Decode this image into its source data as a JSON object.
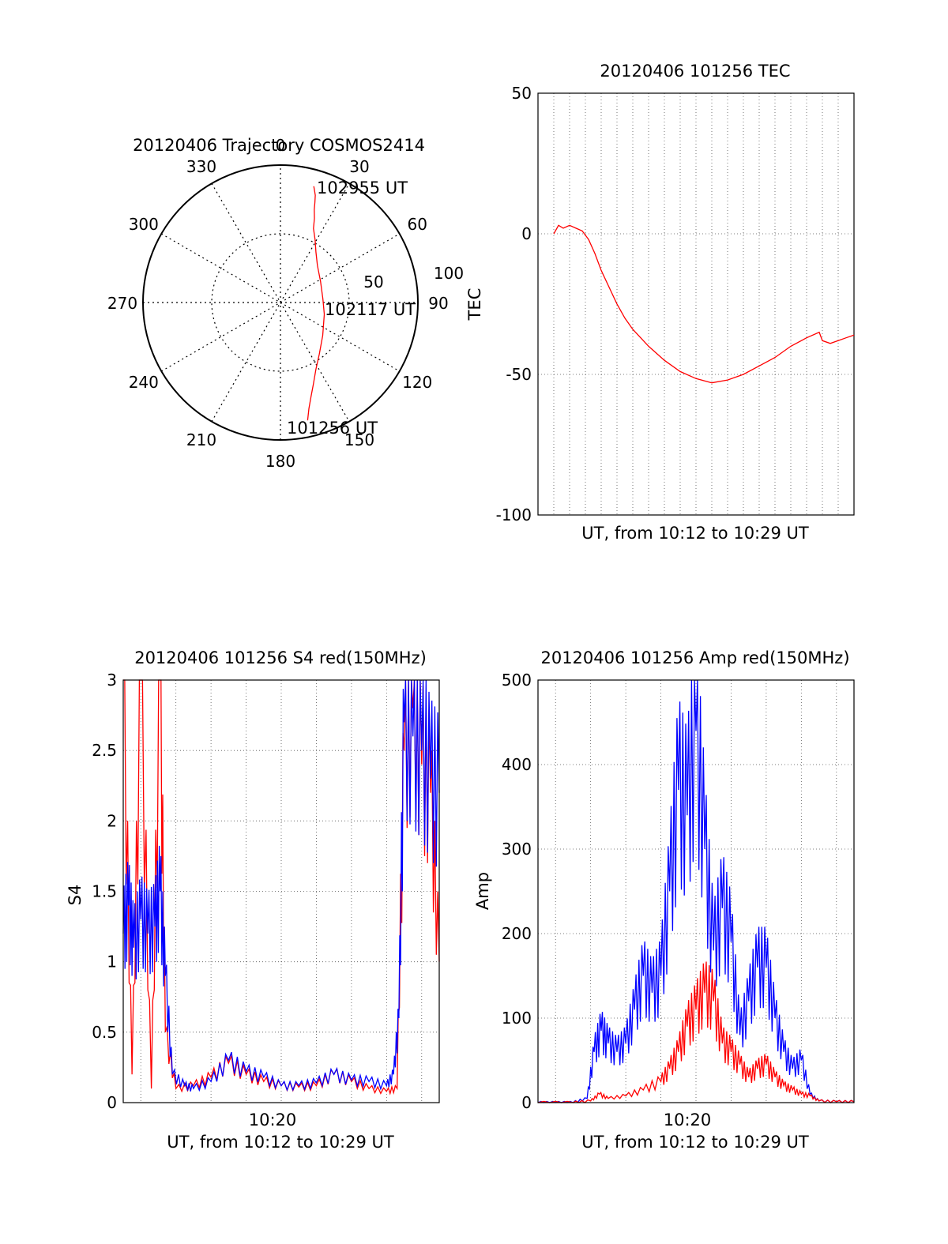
{
  "chart_data": [
    {
      "type": "polar",
      "title": "20120406 Trajectory COSMOS2414",
      "azimuth_labels": [
        "0",
        "30",
        "60",
        "90",
        "120",
        "150",
        "180",
        "210",
        "240",
        "270",
        "300",
        "330"
      ],
      "radial_labels": [
        "50",
        "100"
      ],
      "rlim": [
        0,
        100
      ],
      "point_labels": {
        "start": "101256 UT",
        "mid": "102117 UT",
        "end": "102955 UT"
      },
      "trajectory": {
        "azimuth": [
          167,
          165,
          162,
          158,
          152,
          143,
          128,
          105,
          85,
          62,
          45,
          35,
          29,
          24,
          22,
          20,
          19,
          18,
          17,
          16
        ],
        "radius": [
          88,
          80,
          72,
          64,
          55,
          47,
          39,
          33,
          31,
          33,
          38,
          45,
          52,
          59,
          66,
          72,
          77,
          82,
          85,
          88
        ]
      },
      "colors": {
        "trajectory": "#ff0000"
      }
    },
    {
      "type": "line",
      "title": "20120406 101256 TEC",
      "xlabel": "UT, from 10:12 to 10:29 UT",
      "ylabel": "TEC",
      "yticks": [
        "50",
        "0",
        "-50",
        "-100"
      ],
      "ylim": [
        -100,
        50
      ],
      "xlim_minutes": [
        10.0,
        30.0
      ],
      "series": [
        {
          "color": "#ff0000",
          "x": [
            11.0,
            11.3,
            11.6,
            12.0,
            12.4,
            12.8,
            13.2,
            13.6,
            14.0,
            14.5,
            15.0,
            15.5,
            16.0,
            16.5,
            17.0,
            18.0,
            19.0,
            20.0,
            21.0,
            22.0,
            23.0,
            24.0,
            25.0,
            26.0,
            27.0,
            27.8,
            28.0,
            28.5,
            29.0,
            29.5,
            30.0
          ],
          "y": [
            0,
            3,
            2,
            3,
            2,
            1,
            -2,
            -7,
            -13,
            -19,
            -25,
            -30,
            -34,
            -37,
            -40,
            -45,
            -49,
            -51.5,
            -53,
            -52,
            -50,
            -47,
            -44,
            -40,
            -37,
            -35,
            -38,
            -39,
            -38,
            -37,
            -36
          ]
        }
      ]
    },
    {
      "type": "line",
      "title": "20120406 101256 S4 red(150MHz)",
      "xlabel": "UT, from 10:12 to 10:29 UT",
      "ylabel": "S4",
      "xtick_label": "10:20",
      "yticks": [
        "0",
        "0.5",
        "1",
        "1.5",
        "2",
        "2.5",
        "3"
      ],
      "ylim": [
        0,
        3
      ],
      "xlim_minutes": [
        11.0,
        29.0
      ],
      "series": [
        {
          "color": "#ff0000",
          "x": [
            11.0,
            11.5,
            12.0,
            12.6,
            13.1,
            13.4,
            14.0,
            15.0,
            16.0,
            17.0,
            18.0,
            19.0,
            20.0,
            21.0,
            22.0,
            23.0,
            24.0,
            25.0,
            26.0,
            26.6,
            27.0,
            27.5,
            28.0,
            28.5,
            29.0
          ],
          "y": [
            3.0,
            0.2,
            3.0,
            0.1,
            3.0,
            0.5,
            0.1,
            0.12,
            0.18,
            0.28,
            0.2,
            0.15,
            0.12,
            0.11,
            0.12,
            0.2,
            0.15,
            0.1,
            0.08,
            0.1,
            2.5,
            2.8,
            2.4,
            2.2,
            1.0
          ]
        },
        {
          "color": "#0000ff",
          "x": [
            11.0,
            11.3,
            11.6,
            12.0,
            12.4,
            12.8,
            13.1,
            13.4,
            13.8,
            14.5,
            15.0,
            16.0,
            17.0,
            18.0,
            19.0,
            20.0,
            21.0,
            22.0,
            23.0,
            24.0,
            25.0,
            26.0,
            26.4,
            26.7,
            27.0,
            27.5,
            28.0,
            28.5,
            29.0
          ],
          "y": [
            1.2,
            1.4,
            1.1,
            1.3,
            1.2,
            1.25,
            1.5,
            0.9,
            0.2,
            0.12,
            0.1,
            0.15,
            0.3,
            0.22,
            0.18,
            0.12,
            0.12,
            0.14,
            0.2,
            0.16,
            0.15,
            0.12,
            0.2,
            0.6,
            2.7,
            2.6,
            2.5,
            2.3,
            2.2
          ]
        }
      ]
    },
    {
      "type": "line",
      "title": "20120406 101256 Amp red(150MHz)",
      "xlabel": "UT, from 10:12 to 10:29 UT",
      "ylabel": "Amp",
      "xtick_label": "10:20",
      "yticks": [
        "0",
        "100",
        "200",
        "300",
        "400",
        "500"
      ],
      "ylim": [
        0,
        500
      ],
      "xlim_minutes": [
        11.0,
        29.0
      ],
      "series": [
        {
          "color": "#0000ff",
          "x": [
            11.0,
            12.0,
            13.0,
            13.8,
            14.2,
            14.6,
            15.0,
            15.5,
            16.0,
            16.5,
            17.0,
            17.5,
            18.0,
            18.5,
            19.0,
            19.5,
            20.0,
            20.5,
            21.0,
            21.5,
            22.0,
            22.5,
            23.0,
            23.5,
            24.0,
            24.5,
            25.0,
            25.5,
            26.0,
            26.5,
            27.0,
            28.0,
            29.0
          ],
          "y": [
            0,
            0,
            0,
            5,
            60,
            85,
            70,
            60,
            70,
            110,
            150,
            130,
            150,
            250,
            370,
            340,
            440,
            300,
            180,
            230,
            190,
            80,
            120,
            160,
            160,
            100,
            60,
            40,
            50,
            10,
            2,
            1,
            1
          ]
        },
        {
          "color": "#ff0000",
          "x": [
            11.0,
            13.0,
            14.0,
            14.5,
            15.0,
            16.0,
            17.0,
            18.0,
            18.5,
            19.0,
            19.5,
            20.0,
            20.5,
            21.0,
            21.5,
            22.0,
            22.5,
            23.0,
            23.5,
            24.0,
            24.5,
            25.0,
            25.5,
            26.0,
            26.5,
            27.0,
            28.0,
            29.0
          ],
          "y": [
            0,
            0,
            2,
            10,
            5,
            8,
            15,
            25,
            40,
            60,
            90,
            110,
            130,
            120,
            70,
            60,
            45,
            30,
            40,
            45,
            30,
            20,
            15,
            10,
            8,
            2,
            1,
            1
          ]
        }
      ]
    }
  ]
}
